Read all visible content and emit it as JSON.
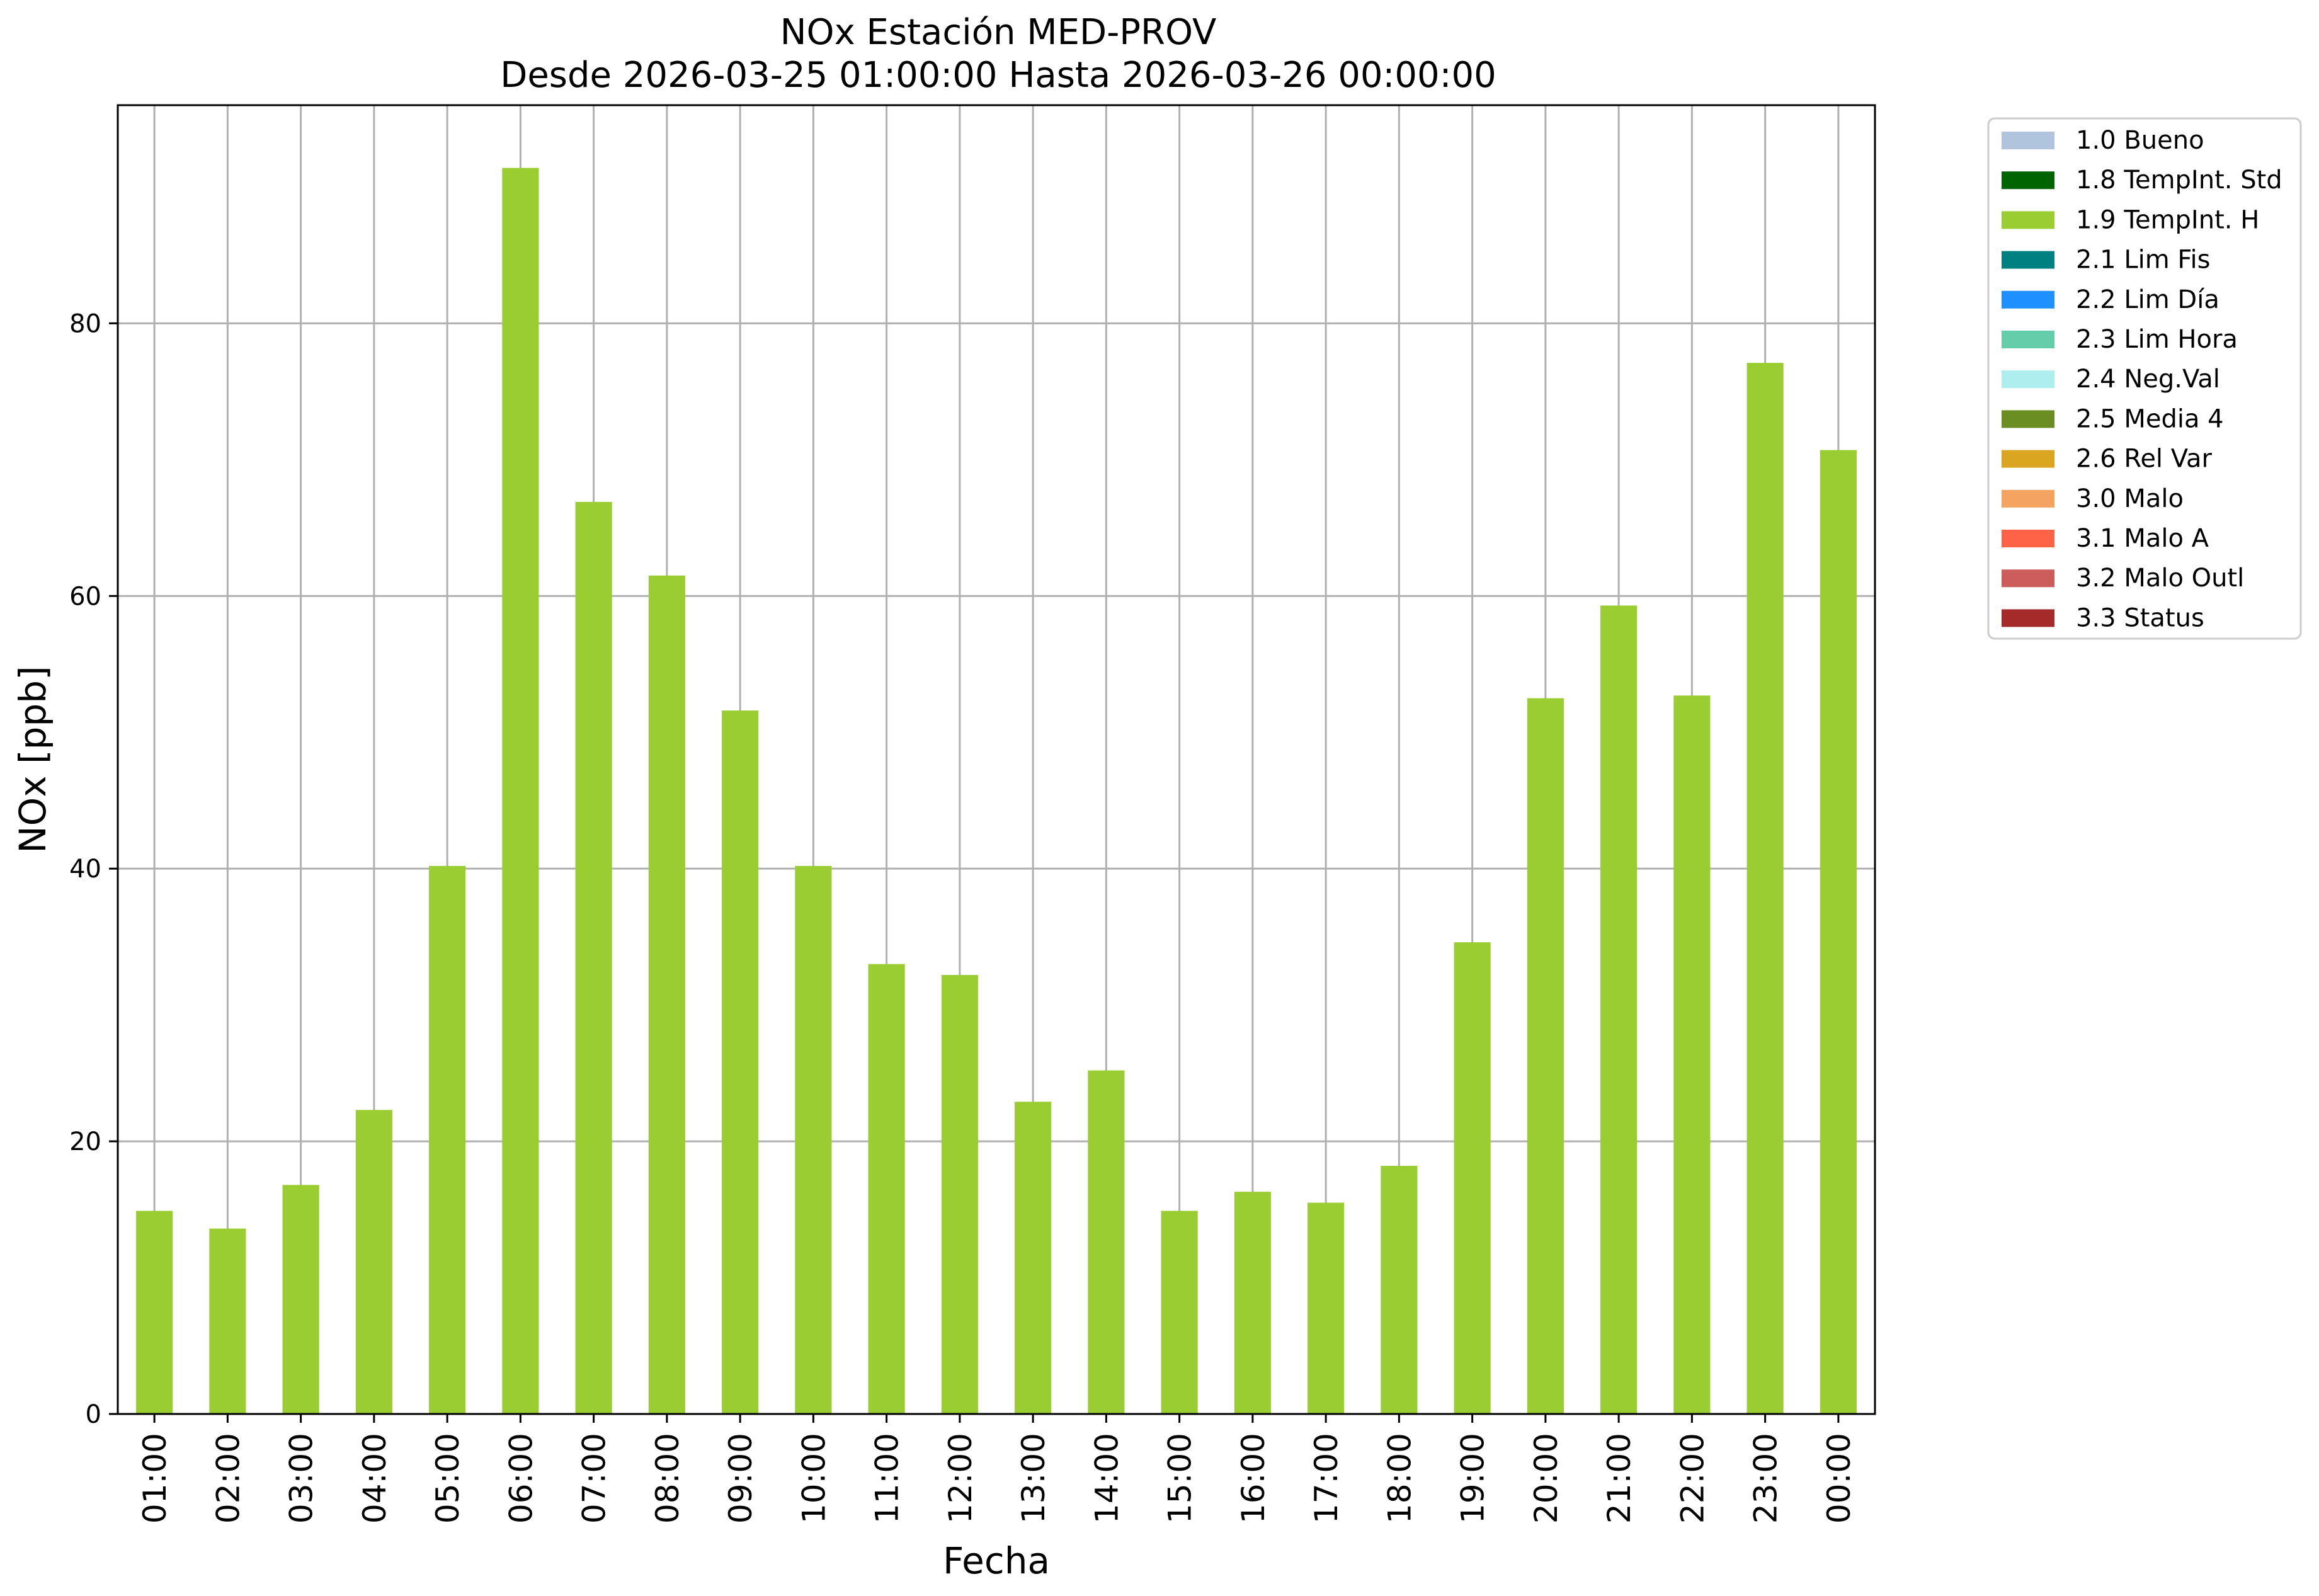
{
  "chart_data": {
    "type": "bar",
    "title": "NOx Estación MED-PROV",
    "subtitle": "Desde 2026-03-25 01:00:00 Hasta 2026-03-26 00:00:00",
    "xlabel": "Fecha",
    "ylabel": "NOx [ppb]",
    "ylim": [
      0,
      96
    ],
    "yticks": [
      0,
      20,
      40,
      60,
      80
    ],
    "grid": true,
    "legend_position": "outside-right",
    "categories": [
      "01:00",
      "02:00",
      "03:00",
      "04:00",
      "05:00",
      "06:00",
      "07:00",
      "08:00",
      "09:00",
      "10:00",
      "11:00",
      "12:00",
      "13:00",
      "14:00",
      "15:00",
      "16:00",
      "17:00",
      "18:00",
      "19:00",
      "20:00",
      "21:00",
      "22:00",
      "23:00",
      "00:00"
    ],
    "series": [
      {
        "name": "1.9 TempInt. H",
        "color": "#9acd32",
        "values": [
          14.9,
          13.6,
          16.8,
          22.3,
          40.2,
          91.4,
          66.9,
          61.5,
          51.6,
          40.2,
          33.0,
          32.2,
          22.9,
          25.2,
          14.9,
          16.3,
          15.5,
          18.2,
          34.6,
          52.5,
          59.3,
          52.7,
          77.1,
          70.7
        ]
      }
    ],
    "legend": [
      {
        "label": "1.0 Bueno",
        "color": "#b0c4de"
      },
      {
        "label": "1.8 TempInt. Std",
        "color": "#006400"
      },
      {
        "label": "1.9 TempInt. H",
        "color": "#9acd32"
      },
      {
        "label": "2.1 Lim Fis",
        "color": "#008080"
      },
      {
        "label": "2.2 Lim Día",
        "color": "#1e90ff"
      },
      {
        "label": "2.3 Lim Hora",
        "color": "#66cdaa"
      },
      {
        "label": "2.4 Neg.Val",
        "color": "#afeeee"
      },
      {
        "label": "2.5 Media 4",
        "color": "#6b8e23"
      },
      {
        "label": "2.6 Rel Var",
        "color": "#daa520"
      },
      {
        "label": "3.0 Malo",
        "color": "#f4a460"
      },
      {
        "label": "3.1 Malo A",
        "color": "#ff6347"
      },
      {
        "label": "3.2 Malo Outl",
        "color": "#cd5c5c"
      },
      {
        "label": "3.3 Status",
        "color": "#a52a2a"
      }
    ]
  }
}
